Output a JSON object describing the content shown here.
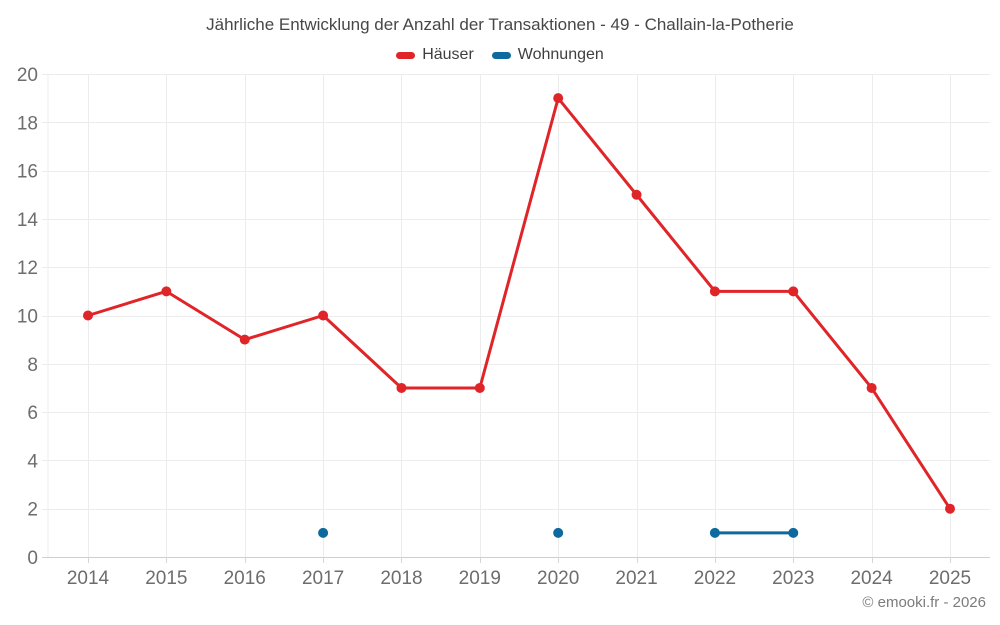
{
  "page": {
    "title": "Jährliche Entwicklung der Anzahl der Transaktionen - 49 - Challain-la-Potherie",
    "copyright": "© emooki.fr - 2026"
  },
  "legend": {
    "items": [
      {
        "label": "Häuser",
        "color": "#e02529"
      },
      {
        "label": "Wohnungen",
        "color": "#0e699e"
      }
    ]
  },
  "chart_data": {
    "type": "line",
    "title": "Jährliche Entwicklung der Anzahl der Transaktionen - 49 - Challain-la-Potherie",
    "categories": [
      "2014",
      "2015",
      "2016",
      "2017",
      "2018",
      "2019",
      "2020",
      "2021",
      "2022",
      "2023",
      "2024",
      "2025"
    ],
    "series": [
      {
        "name": "Häuser",
        "color": "#e02529",
        "values": [
          10,
          11,
          9,
          10,
          7,
          7,
          19,
          15,
          11,
          11,
          7,
          2
        ]
      },
      {
        "name": "Wohnungen",
        "color": "#0e699e",
        "values": [
          null,
          null,
          null,
          1,
          null,
          null,
          1,
          null,
          1,
          1,
          null,
          null
        ]
      }
    ],
    "xlabel": "",
    "ylabel": "",
    "ylim": [
      0,
      20
    ],
    "ytick_step": 2,
    "grid": true,
    "legend_position": "top"
  },
  "theme": {
    "grid_color": "#ececec",
    "axis_line_color": "#cfcfcf",
    "tick_color": "#d5d5d5",
    "axis_label_color": "#6d6d6d",
    "axis_label_size": 19
  }
}
